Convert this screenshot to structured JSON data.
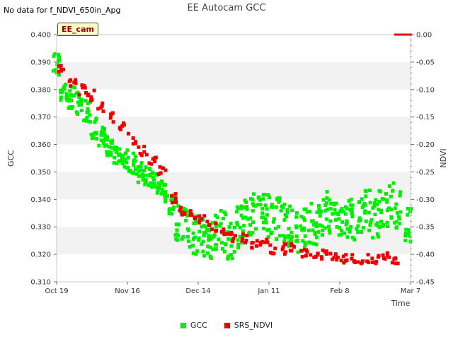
{
  "header": {
    "nodata_message": "No data for f_NDVI_650in_Apg",
    "title": "EE Autocam GCC",
    "badge": "EE_cam"
  },
  "colors": {
    "gcc": "#00ee00",
    "ndvi": "#ee0000",
    "band": "#f2f2f2"
  },
  "chart_data": {
    "type": "scatter",
    "title": "EE Autocam GCC",
    "xlabel": "Time",
    "ylabel": "GCC",
    "y2label": "NDVI",
    "x_ticks": [
      "Oct 19",
      "Nov 16",
      "Dec 14",
      "Jan 11",
      "Feb 8",
      "Mar 7"
    ],
    "xlim": [
      "2023-10-19",
      "2024-03-07"
    ],
    "ylim": [
      0.31,
      0.4
    ],
    "y_ticks": [
      "0.310",
      "0.320",
      "0.330",
      "0.340",
      "0.350",
      "0.360",
      "0.370",
      "0.380",
      "0.390",
      "0.400"
    ],
    "y2lim": [
      -0.45,
      0.0
    ],
    "y2_ticks": [
      "-0.45",
      "-0.40",
      "-0.35",
      "-0.30",
      "-0.25",
      "-0.20",
      "-0.15",
      "-0.10",
      "-0.05",
      "0.00"
    ],
    "legend_position": "bottom-center",
    "series": [
      {
        "name": "GCC",
        "axis": "left",
        "x": [
          "2023-10-19",
          "2023-10-22",
          "2023-10-25",
          "2023-10-28",
          "2023-10-31",
          "2023-11-03",
          "2023-11-06",
          "2023-11-09",
          "2023-11-12",
          "2023-11-15",
          "2023-11-18",
          "2023-11-21",
          "2023-11-24",
          "2023-11-27",
          "2023-11-30",
          "2023-12-03",
          "2023-12-06",
          "2023-12-09",
          "2023-12-12",
          "2023-12-15",
          "2023-12-18",
          "2023-12-21",
          "2023-12-24",
          "2023-12-27",
          "2023-12-30",
          "2024-01-02",
          "2024-01-05",
          "2024-01-08",
          "2024-01-11",
          "2024-01-14",
          "2024-01-17",
          "2024-01-20",
          "2024-01-23",
          "2024-01-26",
          "2024-01-29",
          "2024-02-01",
          "2024-02-04",
          "2024-02-07",
          "2024-02-10",
          "2024-02-13",
          "2024-02-16",
          "2024-02-19",
          "2024-02-22",
          "2024-02-25",
          "2024-02-28",
          "2024-03-02",
          "2024-03-06"
        ],
        "y": [
          0.389,
          0.379,
          0.377,
          0.375,
          0.372,
          0.366,
          0.363,
          0.36,
          0.357,
          0.355,
          0.353,
          0.35,
          0.348,
          0.346,
          0.343,
          0.338,
          0.332,
          0.33,
          0.328,
          0.326,
          0.325,
          0.327,
          0.328,
          0.326,
          0.33,
          0.333,
          0.334,
          0.335,
          0.334,
          0.333,
          0.331,
          0.33,
          0.328,
          0.329,
          0.331,
          0.334,
          0.335,
          0.334,
          0.332,
          0.333,
          0.335,
          0.336,
          0.334,
          0.336,
          0.338,
          0.336,
          0.332
        ]
      },
      {
        "name": "SRS_NDVI",
        "axis": "right",
        "x": [
          "2023-10-21",
          "2023-10-25",
          "2023-10-29",
          "2023-11-02",
          "2023-11-06",
          "2023-11-10",
          "2023-11-14",
          "2023-11-18",
          "2023-11-22",
          "2023-11-26",
          "2023-11-30",
          "2023-12-04",
          "2023-12-08",
          "2023-12-12",
          "2023-12-16",
          "2023-12-20",
          "2023-12-24",
          "2023-12-28",
          "2024-01-01",
          "2024-01-05",
          "2024-01-09",
          "2024-01-13",
          "2024-01-17",
          "2024-01-21",
          "2024-01-25",
          "2024-01-29",
          "2024-02-02",
          "2024-02-06",
          "2024-02-10",
          "2024-02-14",
          "2024-02-18",
          "2024-02-22",
          "2024-02-26",
          "2024-03-01"
        ],
        "y": [
          -0.06,
          -0.09,
          -0.1,
          -0.11,
          -0.13,
          -0.15,
          -0.17,
          -0.19,
          -0.21,
          -0.23,
          -0.25,
          -0.3,
          -0.32,
          -0.33,
          -0.34,
          -0.35,
          -0.36,
          -0.37,
          -0.37,
          -0.38,
          -0.38,
          -0.39,
          -0.39,
          -0.39,
          -0.4,
          -0.4,
          -0.4,
          -0.4,
          -0.41,
          -0.41,
          -0.41,
          -0.41,
          -0.4,
          -0.41
        ]
      }
    ]
  }
}
